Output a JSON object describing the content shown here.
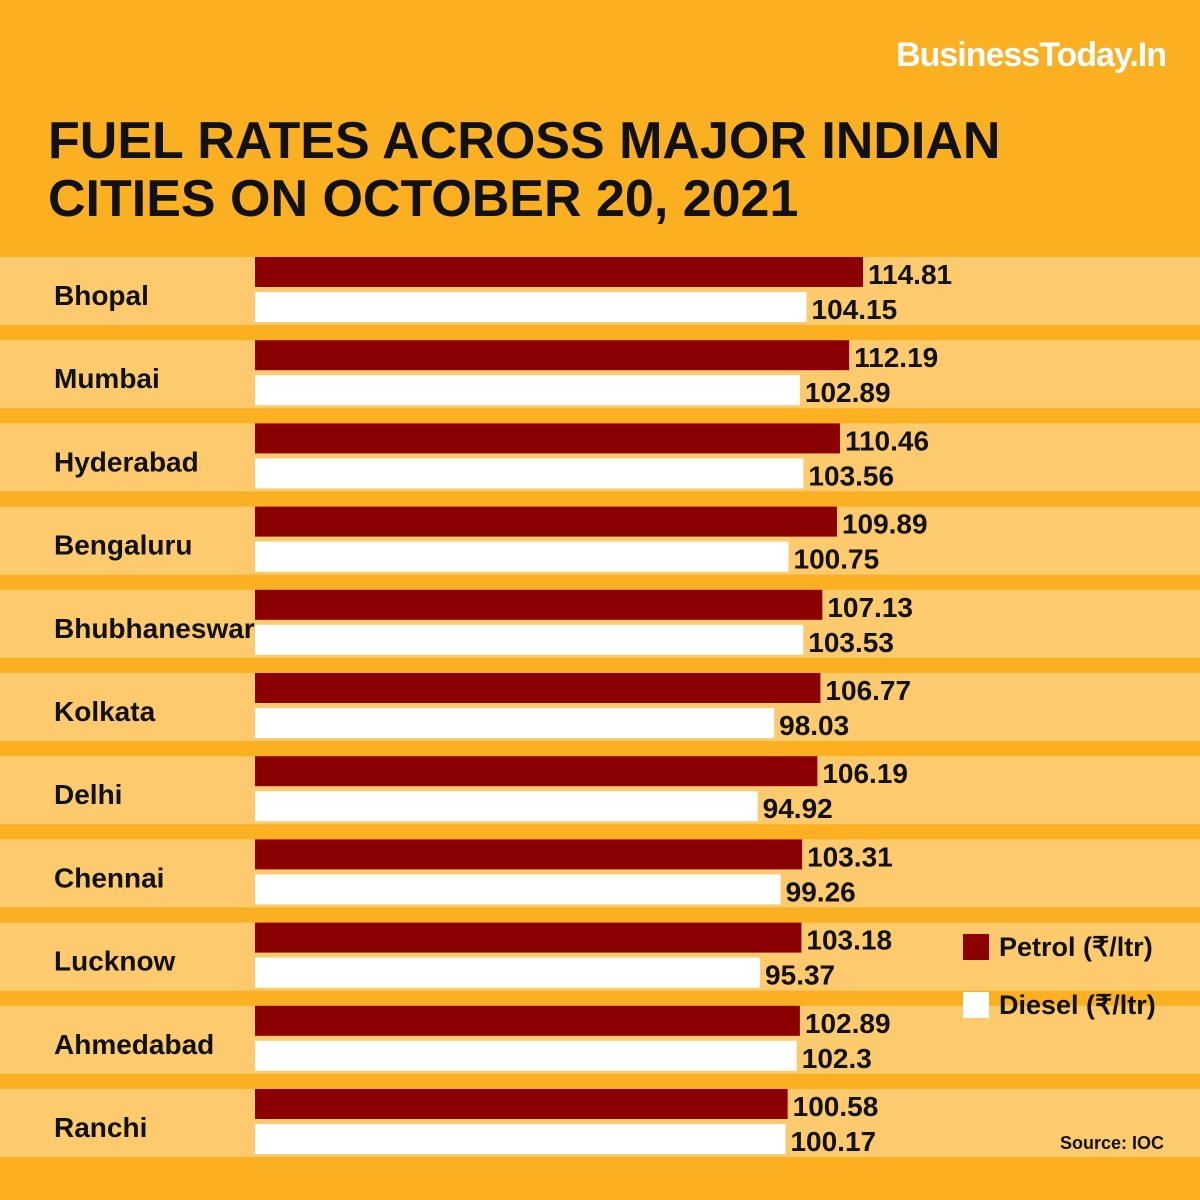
{
  "brand": "BusinessToday.In",
  "title_lines": [
    "FUEL RATES ACROSS MAJOR INDIAN",
    "CITIES ON OCTOBER 20, 2021"
  ],
  "source": "Source: IOC",
  "colors": {
    "background": "#FBB022",
    "row_band": "#FDCB6E",
    "petrol": "#8B0000",
    "diesel": "#FFFFFF"
  },
  "chart_data": {
    "type": "bar",
    "orientation": "horizontal",
    "title": "FUEL RATES ACROSS MAJOR INDIAN CITIES ON OCTOBER 20, 2021",
    "categories": [
      "Bhopal",
      "Mumbai",
      "Hyderabad",
      "Bengaluru",
      "Bhubhaneswar",
      "Kolkata",
      "Delhi",
      "Chennai",
      "Lucknow",
      "Ahmedabad",
      "Ranchi"
    ],
    "series": [
      {
        "name": "Petrol (₹/ltr)",
        "color": "#8B0000",
        "values": [
          114.81,
          112.19,
          110.46,
          109.89,
          107.13,
          106.77,
          106.19,
          103.31,
          103.18,
          102.89,
          100.58
        ]
      },
      {
        "name": "Diesel (₹/ltr)",
        "color": "#FFFFFF",
        "values": [
          104.15,
          102.89,
          103.56,
          100.75,
          103.53,
          98.03,
          94.92,
          99.26,
          95.37,
          102.3,
          100.17
        ]
      }
    ],
    "value_labels": [
      [
        "114.81",
        "112.19",
        "110.46",
        "109.89",
        "107.13",
        "106.77",
        "106.19",
        "103.31",
        "103.18",
        "102.89",
        "100.58"
      ],
      [
        "104.15",
        "102.89",
        "103.56",
        "100.75",
        "103.53",
        "98.03",
        "94.92",
        "99.26",
        "95.37",
        "102.3",
        "100.17"
      ]
    ],
    "xlim": [
      0,
      114.81
    ],
    "grid": false,
    "legend_position": "right"
  }
}
